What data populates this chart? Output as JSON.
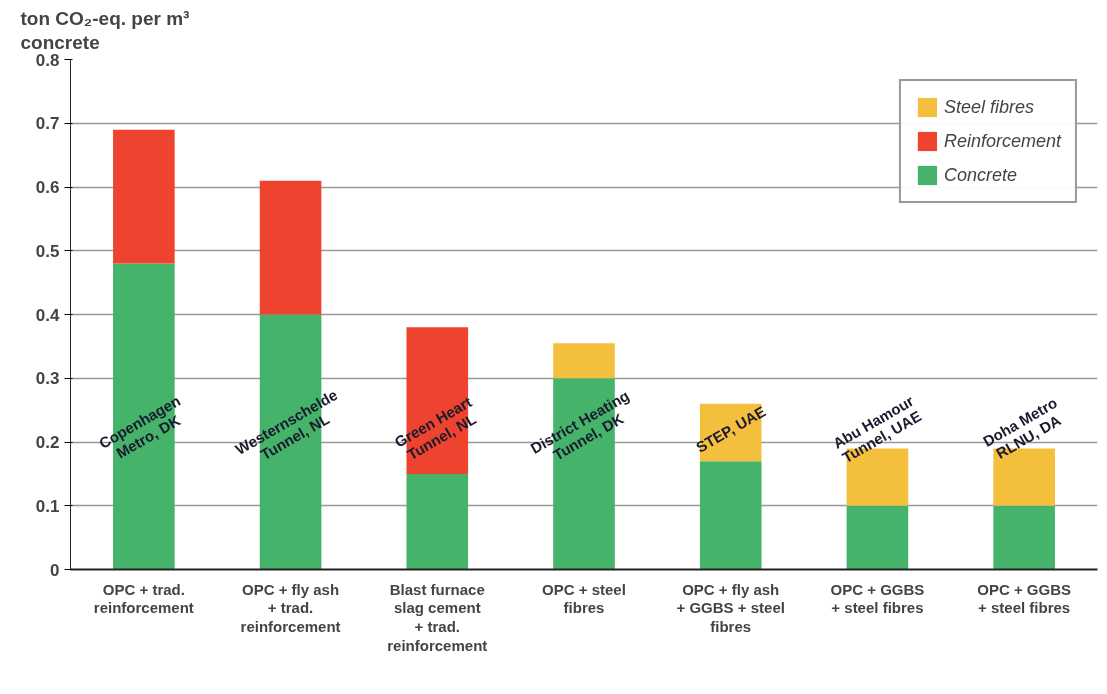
{
  "chart_data": {
    "type": "bar",
    "stacked": true,
    "ylabel": "ton CO₂-eq. per m³\nconcrete",
    "categories": [
      "OPC + trad.\nreinforcement",
      "OPC + fly ash\n+ trad.\nreinforcement",
      "Blast furnace\nslag cement\n+ trad.\nreinforcement",
      "OPC + steel\nfibres",
      "OPC + fly ash\n+ GGBS + steel\nfibres",
      "OPC + GGBS\n+ steel fibres",
      "OPC + GGBS\n+ steel fibres"
    ],
    "series": [
      {
        "name": "Concrete",
        "color": "#45b369",
        "values": [
          0.48,
          0.4,
          0.15,
          0.3,
          0.17,
          0.1,
          0.1
        ]
      },
      {
        "name": "Reinforcement",
        "color": "#ee432e",
        "values": [
          0.21,
          0.21,
          0.23,
          null,
          null,
          null,
          null
        ]
      },
      {
        "name": "Steel fibres",
        "color": "#f5bf3e",
        "values": [
          null,
          null,
          null,
          0.055,
          0.09,
          0.09,
          0.09
        ]
      }
    ],
    "ylim": [
      0,
      0.8
    ],
    "yticks": [
      {
        "value": 0,
        "label": "0"
      },
      0.1,
      0.2,
      0.3,
      0.4,
      0.5,
      0.6,
      0.7,
      0.8
    ],
    "grid": "y",
    "legend": "top right",
    "annotations": [
      "Copenhagen\nMetro, DK",
      "Westernschelde\nTunnel, NL",
      "Green Heart\nTunnel, NL",
      "District Heating\nTunnel, DK",
      "STEP, UAE",
      "Abu Hamour\nTunnel, UAE",
      "Doha Metro\nRLNU, DA"
    ]
  }
}
